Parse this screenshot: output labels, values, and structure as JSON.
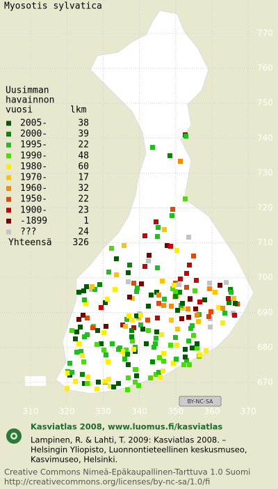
{
  "title": "Myosotis sylvatica",
  "legend": {
    "header": [
      "Uusimman",
      "havainnon",
      "vuosi"
    ],
    "count_header": "lkm",
    "rows": [
      {
        "label": "2005-",
        "count": 38,
        "color": "#005a00"
      },
      {
        "label": "2000-",
        "count": 39,
        "color": "#008a00"
      },
      {
        "label": "1995-",
        "count": 22,
        "color": "#1fbf1f"
      },
      {
        "label": "1990-",
        "count": 48,
        "color": "#44e000"
      },
      {
        "label": "1980-",
        "count": 60,
        "color": "#ffee00"
      },
      {
        "label": "1970-",
        "count": 17,
        "color": "#ffc400"
      },
      {
        "label": "1960-",
        "count": 32,
        "color": "#ff8800"
      },
      {
        "label": "1950-",
        "count": 22,
        "color": "#ee4400"
      },
      {
        "label": "1900-",
        "count": 23,
        "color": "#cc0000"
      },
      {
        "label": "-1899",
        "count": 1,
        "color": "#7a0000"
      },
      {
        "label": "???",
        "count": 24,
        "color": "#c4c4c4"
      }
    ],
    "total_label": "Yhteensä",
    "total": 326
  },
  "grid": {
    "y_labels": [
      "770",
      "760",
      "750",
      "740",
      "730",
      "720",
      "710",
      "700",
      "690",
      "680",
      "670"
    ],
    "x_labels": [
      "310",
      "320",
      "330",
      "340",
      "350",
      "360",
      "370"
    ]
  },
  "badge": "BY-NC-SA",
  "footer": {
    "heading": "Kasviatlas 2008, www.luomus.fi/kasviatlas",
    "citation": [
      "Lampinen, R. & Lahti, T. 2009: Kasviatlas 2008. –",
      "Helsingin Yliopisto, Luonnontieteellinen keskusmuseo,",
      "Kasvimuseo, Helsinki."
    ],
    "license": [
      "Creative Commons Nimeä-Epäkaupallinen-Tarttuva 1.0 Suomi",
      "http://creativecommons.org/licenses/by-nc-sa/1.0/fi"
    ]
  }
}
